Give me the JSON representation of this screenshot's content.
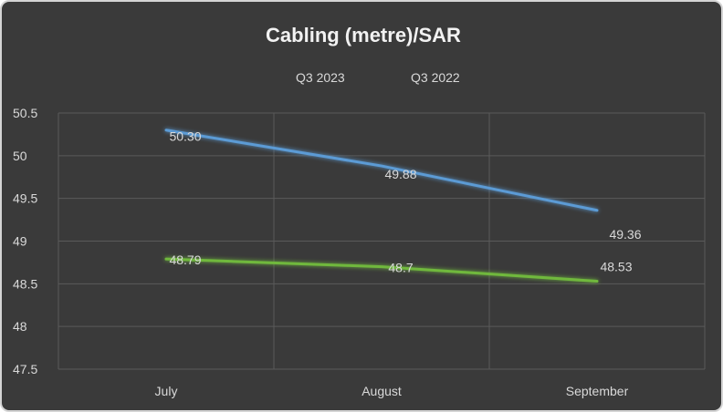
{
  "chart_data": {
    "type": "line",
    "title": "Cabling (metre)/SAR",
    "xlabel": "",
    "ylabel": "",
    "categories": [
      "July",
      "August",
      "September"
    ],
    "ylim": [
      47.5,
      50.5
    ],
    "yticks": [
      "47.5",
      "48",
      "48.5",
      "49",
      "49.5",
      "50",
      "50.5"
    ],
    "grid": true,
    "legend_position": "top",
    "series": [
      {
        "name": "Q3 2023",
        "color": "#6fb83d",
        "values": [
          48.79,
          48.7,
          48.53
        ],
        "labels": [
          "48.79",
          "48.7",
          "48.53"
        ]
      },
      {
        "name": "Q3 2022",
        "color": "#5b9bd5",
        "values": [
          50.3,
          49.88,
          49.36
        ],
        "labels": [
          "50.30",
          "49.88",
          "49.36"
        ]
      }
    ]
  }
}
